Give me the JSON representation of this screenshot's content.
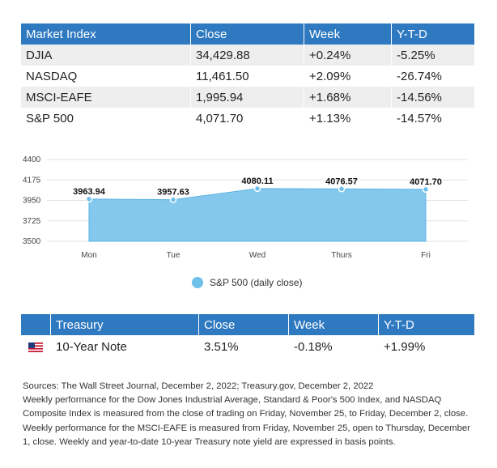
{
  "market_table": {
    "headers": [
      "Market Index",
      "Close",
      "Week",
      "Y-T-D"
    ],
    "rows": [
      [
        "DJIA",
        "34,429.88",
        "+0.24%",
        "-5.25%"
      ],
      [
        "NASDAQ",
        "11,461.50",
        "+2.09%",
        "-26.74%"
      ],
      [
        "MSCI-EAFE",
        "1,995.94",
        "+1.68%",
        "-14.56%"
      ],
      [
        "S&P 500",
        "4,071.70",
        "+1.13%",
        "-14.57%"
      ]
    ]
  },
  "chart_data": {
    "type": "area",
    "categories": [
      "Mon",
      "Tue",
      "Wed",
      "Thurs",
      "Fri"
    ],
    "series": [
      {
        "name": "S&P 500 (daily close)",
        "values": [
          3963.94,
          3957.63,
          4080.11,
          4076.57,
          4071.7
        ]
      }
    ],
    "point_labels": [
      "3963.94",
      "3957.63",
      "4080.11",
      "4076.57",
      "4071.70"
    ],
    "ylim": [
      3500,
      4400
    ],
    "yticks": [
      "3500",
      "3725",
      "3950",
      "4175",
      "4400"
    ],
    "grid": true,
    "legend": "bottom",
    "color": "#6ec0ea"
  },
  "treasury_table": {
    "headers": [
      "Treasury",
      "Close",
      "Week",
      "Y-T-D"
    ],
    "row": {
      "flag_icon": "us-flag-icon",
      "name": "10-Year Note",
      "close": "3.51%",
      "week": "-0.18%",
      "ytd": "+1.99%"
    }
  },
  "notes": {
    "sources": "Sources: The Wall Street Journal, December 2, 2022; Treasury.gov, December 2, 2022",
    "text": "Weekly performance for the Dow Jones Industrial Average, Standard & Poor's 500 Index, and NASDAQ Composite Index is measured from the close of trading on Friday, November 25, to Friday, December 2, close. Weekly performance for the MSCI-EAFE is measured from Friday, November 25, open to Thursday, December 1, close. Weekly and year-to-date 10-year Treasury note yield are expressed in basis points."
  },
  "colors": {
    "header_blue": "#2e79c0",
    "area_fill": "#6ec0ea",
    "row_stripe": "#eeeeee"
  }
}
